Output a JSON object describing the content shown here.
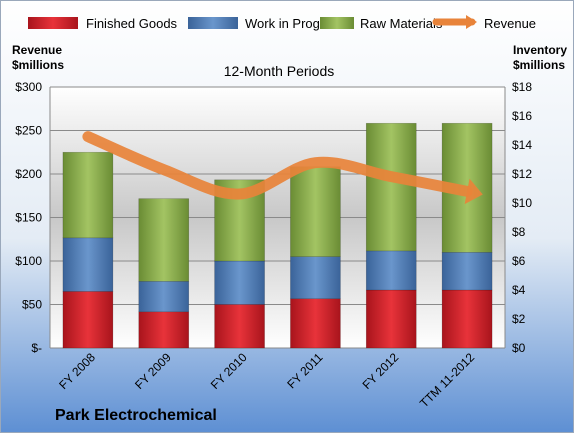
{
  "chart_data": {
    "type": "bar",
    "stacked": true,
    "subtitle": "12-Month Periods",
    "company": "Park Electrochemical",
    "categories": [
      "FY 2008",
      "FY 2009",
      "FY 2010",
      "FY 2011",
      "FY 2012",
      "TTM 11-2012"
    ],
    "left_axis": {
      "title_line1": "Revenue",
      "title_line2": "$millions",
      "min": 0,
      "max": 300,
      "step": 50,
      "tick_labels": [
        "$-",
        "$50",
        "$100",
        "$150",
        "$200",
        "$250",
        "$300"
      ]
    },
    "right_axis": {
      "title_line1": "Inventory",
      "title_line2": "$millions",
      "min": 0,
      "max": 18,
      "step": 2,
      "tick_labels": [
        "$0",
        "$2",
        "$4",
        "$6",
        "$8",
        "$10",
        "$12",
        "$14",
        "$16",
        "$18"
      ]
    },
    "series": [
      {
        "name": "Finished Goods",
        "axis": "right",
        "color": "#d9272e",
        "values": [
          3.9,
          2.5,
          3.0,
          3.4,
          4.0,
          4.0
        ]
      },
      {
        "name": "Work in Progress",
        "axis": "right",
        "color": "#4f81bd",
        "values": [
          3.7,
          2.1,
          3.0,
          2.9,
          2.7,
          2.6
        ]
      },
      {
        "name": "Raw Materials",
        "axis": "right",
        "color": "#8db04e",
        "values": [
          5.9,
          5.7,
          5.6,
          6.2,
          8.8,
          8.9
        ]
      },
      {
        "name": "Revenue",
        "axis": "left",
        "type": "line",
        "color": "#e8833a",
        "values": [
          243,
          205,
          177,
          213,
          197,
          180
        ]
      }
    ],
    "grid": true,
    "legend_position": "top"
  }
}
